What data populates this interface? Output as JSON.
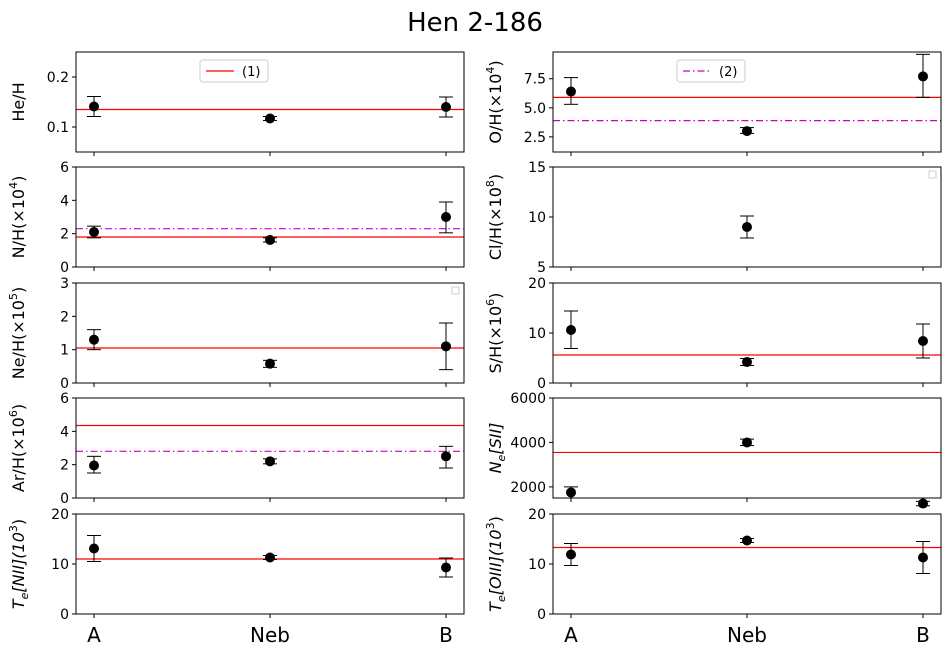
{
  "figure_title": "Hen 2-186",
  "chart_data": [
    {
      "type": "scatter",
      "panel": "he",
      "ylabel": "He/H",
      "ylim": [
        0.05,
        0.25
      ],
      "yticks": [
        0.1,
        0.2
      ],
      "ytick_labels": [
        "0.1",
        "0.2"
      ],
      "categories": [
        "A",
        "Neb",
        "B"
      ],
      "points": [
        {
          "y": 0.141,
          "lo": 0.121,
          "hi": 0.161
        },
        {
          "y": 0.117,
          "lo": 0.113,
          "hi": 0.121
        },
        {
          "y": 0.14,
          "lo": 0.12,
          "hi": 0.16
        }
      ],
      "ref_lines": [
        {
          "y": 0.135,
          "style": "solid",
          "color": "#ff0000"
        }
      ],
      "legend": {
        "label": "(1)",
        "style": "solid",
        "color": "#ff0000",
        "position": "upper-center"
      }
    },
    {
      "type": "scatter",
      "panel": "o",
      "ylabel": "O/H(×10^4)",
      "ylim": [
        1.2,
        9.8
      ],
      "yticks": [
        2.5,
        5.0,
        7.5
      ],
      "ytick_labels": [
        "2.5",
        "5.0",
        "7.5"
      ],
      "categories": [
        "A",
        "Neb",
        "B"
      ],
      "points": [
        {
          "y": 6.4,
          "lo": 5.3,
          "hi": 7.6
        },
        {
          "y": 3.0,
          "lo": 2.8,
          "hi": 3.3
        },
        {
          "y": 7.7,
          "lo": 5.9,
          "hi": 9.6
        }
      ],
      "ref_lines": [
        {
          "y": 5.9,
          "style": "solid",
          "color": "#ff0000"
        },
        {
          "y": 3.9,
          "style": "dashdot",
          "color": "#cc00cc"
        }
      ],
      "legend": {
        "label": "(2)",
        "style": "dashdot",
        "color": "#cc00cc",
        "position": "upper-center"
      }
    },
    {
      "type": "scatter",
      "panel": "n",
      "ylabel": "N/H(×10^4)",
      "ylim": [
        0,
        6
      ],
      "yticks": [
        0,
        2,
        4,
        6
      ],
      "ytick_labels": [
        "0",
        "2",
        "4",
        "6"
      ],
      "categories": [
        "A",
        "Neb",
        "B"
      ],
      "points": [
        {
          "y": 2.1,
          "lo": 1.75,
          "hi": 2.45
        },
        {
          "y": 1.62,
          "lo": 1.5,
          "hi": 1.75
        },
        {
          "y": 3.0,
          "lo": 2.05,
          "hi": 3.9
        }
      ],
      "ref_lines": [
        {
          "y": 1.8,
          "style": "solid",
          "color": "#ff0000"
        },
        {
          "y": 2.3,
          "style": "dashdot",
          "color": "#cc00cc"
        }
      ]
    },
    {
      "type": "scatter",
      "panel": "cl",
      "ylabel": "Cl/H(×10^8)",
      "ylim": [
        5,
        15
      ],
      "yticks": [
        5,
        10,
        15
      ],
      "ytick_labels": [
        "5",
        "10",
        "15"
      ],
      "categories": [
        "A",
        "Neb",
        "B"
      ],
      "points": [
        null,
        {
          "y": 9.0,
          "lo": 7.9,
          "hi": 10.1
        },
        null
      ],
      "ref_lines": [],
      "empty_legend": true
    },
    {
      "type": "scatter",
      "panel": "ne",
      "ylabel": "Ne/H(×10^5)",
      "ylim": [
        0,
        3
      ],
      "yticks": [
        0,
        1,
        2,
        3
      ],
      "ytick_labels": [
        "0",
        "1",
        "2",
        "3"
      ],
      "categories": [
        "A",
        "Neb",
        "B"
      ],
      "points": [
        {
          "y": 1.3,
          "lo": 1.0,
          "hi": 1.6
        },
        {
          "y": 0.58,
          "lo": 0.47,
          "hi": 0.68
        },
        {
          "y": 1.1,
          "lo": 0.4,
          "hi": 1.8
        }
      ],
      "ref_lines": [
        {
          "y": 1.05,
          "style": "solid",
          "color": "#ff0000"
        }
      ],
      "empty_legend": true
    },
    {
      "type": "scatter",
      "panel": "s",
      "ylabel": "S/H(×10^6)",
      "ylim": [
        0,
        20
      ],
      "yticks": [
        0,
        10,
        20
      ],
      "ytick_labels": [
        "0",
        "10",
        "20"
      ],
      "categories": [
        "A",
        "Neb",
        "B"
      ],
      "points": [
        {
          "y": 10.6,
          "lo": 6.9,
          "hi": 14.4
        },
        {
          "y": 4.2,
          "lo": 3.5,
          "hi": 4.9
        },
        {
          "y": 8.4,
          "lo": 5.0,
          "hi": 11.8
        }
      ],
      "ref_lines": [
        {
          "y": 5.6,
          "style": "solid",
          "color": "#ff0000"
        }
      ]
    },
    {
      "type": "scatter",
      "panel": "ar",
      "ylabel": "Ar/H(×10^6)",
      "ylim": [
        0,
        6
      ],
      "yticks": [
        0,
        2,
        4,
        6
      ],
      "ytick_labels": [
        "0",
        "2",
        "4",
        "6"
      ],
      "categories": [
        "A",
        "Neb",
        "B"
      ],
      "points": [
        {
          "y": 1.95,
          "lo": 1.5,
          "hi": 2.5
        },
        {
          "y": 2.2,
          "lo": 2.05,
          "hi": 2.35
        },
        {
          "y": 2.5,
          "lo": 1.8,
          "hi": 3.1
        }
      ],
      "ref_lines": [
        {
          "y": 4.35,
          "style": "solid",
          "color": "#ff0000"
        },
        {
          "y": 2.8,
          "style": "dashdot",
          "color": "#cc00cc"
        }
      ]
    },
    {
      "type": "scatter",
      "panel": "nesii",
      "ylabel": "N_e[SII]",
      "ylim": [
        1500,
        6000
      ],
      "yticks": [
        2000,
        4000,
        6000
      ],
      "ytick_labels": [
        "2000",
        "4000",
        "6000"
      ],
      "categories": [
        "A",
        "Neb",
        "B"
      ],
      "points": [
        {
          "y": 1750,
          "lo": 1500,
          "hi": 2000
        },
        {
          "y": 4000,
          "lo": 3860,
          "hi": 4150
        },
        {
          "y": 1250,
          "lo": 1150,
          "hi": 1350
        }
      ],
      "ref_lines": [
        {
          "y": 3550,
          "style": "solid",
          "color": "#ff0000"
        }
      ]
    },
    {
      "type": "scatter",
      "panel": "tenii",
      "ylabel": "T_e[NII](10^3)",
      "ylim": [
        0,
        20
      ],
      "yticks": [
        0,
        10,
        20
      ],
      "ytick_labels": [
        "0",
        "10",
        "20"
      ],
      "categories": [
        "A",
        "Neb",
        "B"
      ],
      "points": [
        {
          "y": 13.1,
          "lo": 10.5,
          "hi": 15.7
        },
        {
          "y": 11.3,
          "lo": 10.9,
          "hi": 11.7
        },
        {
          "y": 9.3,
          "lo": 7.4,
          "hi": 11.2
        }
      ],
      "ref_lines": [
        {
          "y": 11.0,
          "style": "solid",
          "color": "#ff0000"
        }
      ]
    },
    {
      "type": "scatter",
      "panel": "teoiii",
      "ylabel": "T_e[OIII](10^3)",
      "ylim": [
        0,
        20
      ],
      "yticks": [
        0,
        10,
        20
      ],
      "ytick_labels": [
        "0",
        "10",
        "20"
      ],
      "categories": [
        "A",
        "Neb",
        "B"
      ],
      "points": [
        {
          "y": 11.9,
          "lo": 9.7,
          "hi": 14.1
        },
        {
          "y": 14.7,
          "lo": 14.3,
          "hi": 15.1
        },
        {
          "y": 11.3,
          "lo": 8.1,
          "hi": 14.5
        }
      ],
      "ref_lines": [
        {
          "y": 13.3,
          "style": "solid",
          "color": "#ff0000"
        }
      ]
    }
  ]
}
